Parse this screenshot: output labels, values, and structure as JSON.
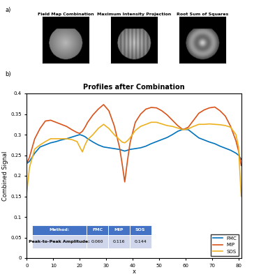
{
  "figure_labels": [
    "a)",
    "b)"
  ],
  "images": {
    "titles": [
      "Field Map Combination",
      "Maximum Intensity Projection",
      "Root Sum of Squares"
    ]
  },
  "chart_data": {
    "type": "line",
    "title": "Profiles after Combination",
    "x_label": "x",
    "y_label": "Combined Signal",
    "x": [
      0,
      1,
      3,
      5,
      7,
      9,
      11,
      13,
      15,
      17,
      19,
      20,
      21,
      22,
      23,
      25,
      27,
      29,
      31,
      33,
      35,
      36,
      37,
      38,
      39,
      41,
      43,
      45,
      47,
      49,
      51,
      53,
      55,
      57,
      59,
      61,
      63,
      65,
      67,
      69,
      71,
      73,
      75,
      77,
      79,
      80,
      81
    ],
    "series": [
      {
        "name": "FMC",
        "color": "#0072BD",
        "values": [
          0.23,
          0.235,
          0.255,
          0.27,
          0.275,
          0.28,
          0.283,
          0.287,
          0.29,
          0.294,
          0.298,
          0.3,
          0.298,
          0.295,
          0.29,
          0.282,
          0.275,
          0.27,
          0.268,
          0.266,
          0.264,
          0.262,
          0.26,
          0.262,
          0.264,
          0.266,
          0.268,
          0.272,
          0.278,
          0.283,
          0.288,
          0.293,
          0.3,
          0.308,
          0.313,
          0.312,
          0.302,
          0.292,
          0.287,
          0.282,
          0.278,
          0.272,
          0.267,
          0.262,
          0.255,
          0.25,
          0.24
        ]
      },
      {
        "name": "MIP",
        "color": "#D95319",
        "values": [
          0.23,
          0.245,
          0.29,
          0.315,
          0.333,
          0.335,
          0.33,
          0.325,
          0.32,
          0.312,
          0.305,
          0.303,
          0.308,
          0.318,
          0.33,
          0.348,
          0.362,
          0.373,
          0.358,
          0.322,
          0.27,
          0.23,
          0.185,
          0.235,
          0.28,
          0.33,
          0.35,
          0.362,
          0.366,
          0.365,
          0.358,
          0.348,
          0.335,
          0.322,
          0.312,
          0.318,
          0.335,
          0.352,
          0.36,
          0.365,
          0.367,
          0.358,
          0.345,
          0.32,
          0.285,
          0.26,
          0.225
        ]
      },
      {
        "name": "SOS",
        "color": "#EDB120",
        "values": [
          0.16,
          0.22,
          0.265,
          0.275,
          0.283,
          0.29,
          0.29,
          0.29,
          0.29,
          0.288,
          0.283,
          0.27,
          0.258,
          0.275,
          0.288,
          0.3,
          0.315,
          0.325,
          0.315,
          0.3,
          0.288,
          0.282,
          0.28,
          0.285,
          0.292,
          0.31,
          0.32,
          0.325,
          0.33,
          0.33,
          0.326,
          0.322,
          0.32,
          0.316,
          0.312,
          0.314,
          0.32,
          0.325,
          0.325,
          0.326,
          0.325,
          0.324,
          0.322,
          0.318,
          0.3,
          0.27,
          0.15
        ]
      }
    ],
    "xlim": [
      0,
      81
    ],
    "ylim": [
      0,
      0.4
    ],
    "xticks": [
      0,
      10,
      20,
      30,
      40,
      50,
      60,
      70,
      80
    ],
    "yticks": [
      0,
      0.05,
      0.1,
      0.15,
      0.2,
      0.25,
      0.3,
      0.35,
      0.4
    ],
    "legend": "lower right",
    "grid": false,
    "table": {
      "header": [
        "Method:",
        "FMC",
        "MIP",
        "SOS"
      ],
      "rows": [
        [
          "Peak-to-Peak Amplitude:",
          "0.060",
          "0.116",
          "0.144"
        ]
      ]
    }
  }
}
